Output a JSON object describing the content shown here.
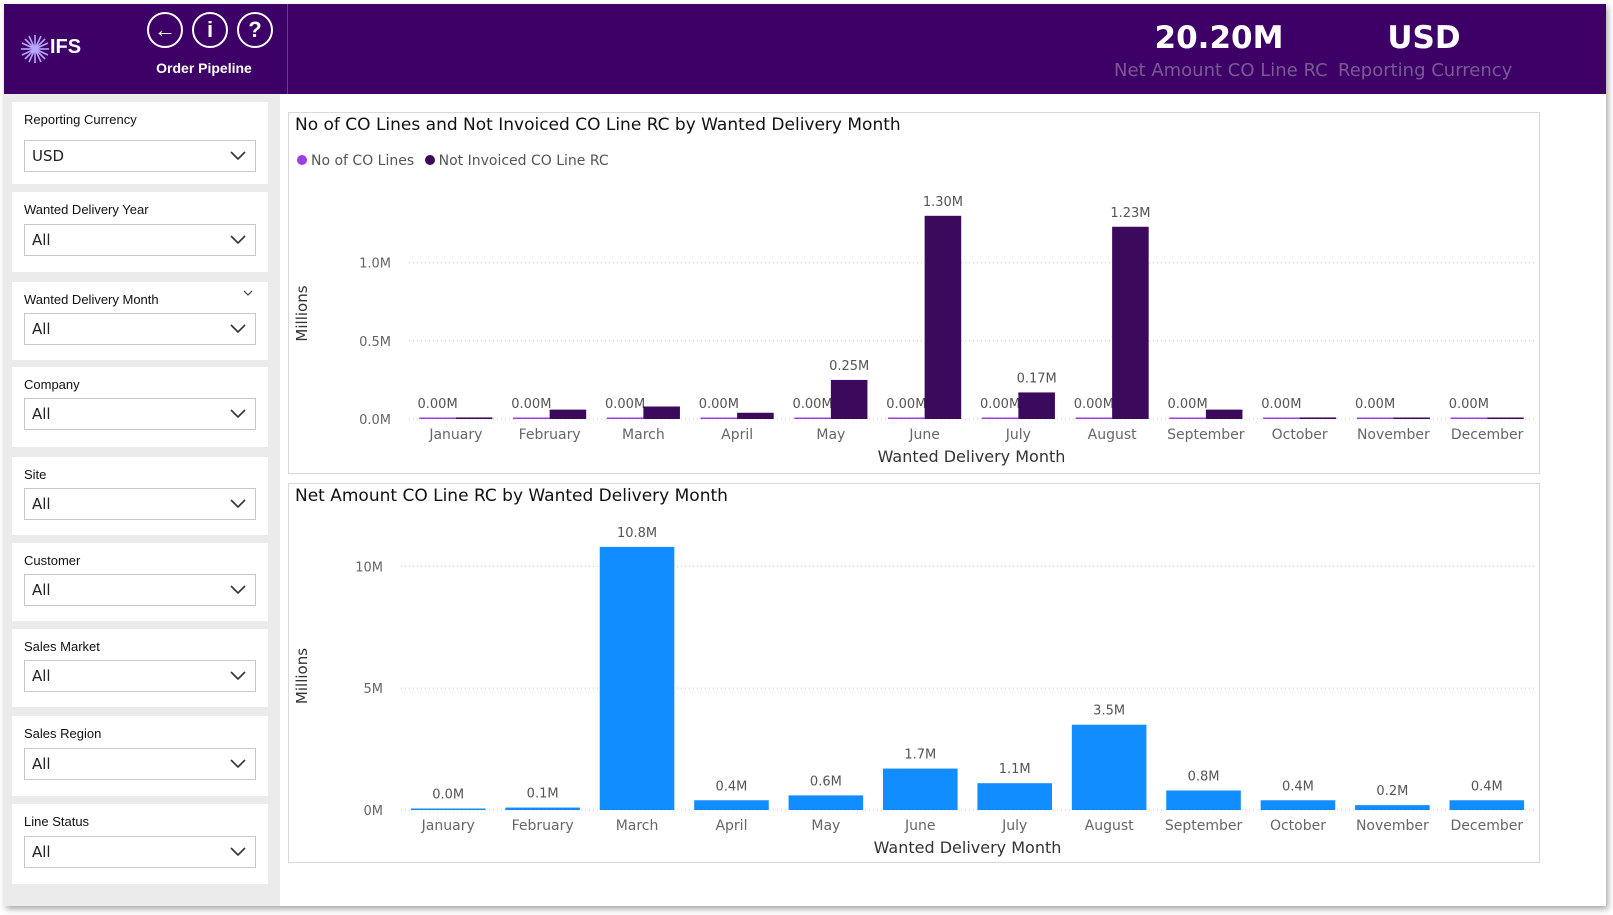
{
  "app": {
    "logo_text": "IFS",
    "title": "Order Pipeline",
    "nav": {
      "back": "←",
      "info": "i",
      "help": "?"
    }
  },
  "kpis": [
    {
      "value": "20.20M",
      "label": "Net Amount CO Line RC"
    },
    {
      "value": "USD",
      "label": "Reporting Currency"
    }
  ],
  "filters": [
    {
      "label": "Reporting Currency",
      "value": "USD"
    },
    {
      "label": "Wanted Delivery Year",
      "value": "All"
    },
    {
      "label": "Wanted Delivery Month",
      "value": "All"
    },
    {
      "label": "Company",
      "value": "All"
    },
    {
      "label": "Site",
      "value": "All"
    },
    {
      "label": "Customer",
      "value": "All"
    },
    {
      "label": "Sales Market",
      "value": "All"
    },
    {
      "label": "Sales Region",
      "value": "All"
    },
    {
      "label": "Line Status",
      "value": "All"
    }
  ],
  "colors": {
    "header_bg": "#3d0066",
    "series_co_lines": "#9b3fe0",
    "series_not_invoiced": "#3b0a5c",
    "series_net_amount": "#118dff"
  },
  "chart_data": [
    {
      "type": "bar",
      "title": "No of CO Lines and Not Invoiced CO Line RC by Wanted Delivery Month",
      "xlabel": "Wanted Delivery Month",
      "ylabel": "Millions",
      "categories": [
        "January",
        "February",
        "March",
        "April",
        "May",
        "June",
        "July",
        "August",
        "September",
        "October",
        "November",
        "December"
      ],
      "series": [
        {
          "name": "No of CO Lines",
          "values": [
            0,
            0,
            0,
            0,
            0,
            0,
            0,
            0,
            0,
            0,
            0,
            0
          ],
          "labels": [
            "0.00M",
            "0.00M",
            "0.00M",
            "0.00M",
            "0.00M",
            "0.00M",
            "0.00M",
            "0.00M",
            "0.00M",
            "0.00M",
            "0.00M",
            "0.00M"
          ]
        },
        {
          "name": "Not Invoiced CO Line RC",
          "values": [
            0.01,
            0.06,
            0.08,
            0.04,
            0.25,
            1.3,
            0.17,
            1.23,
            0.06,
            0.01,
            0.005,
            0.005
          ],
          "labels": [
            "",
            "",
            "",
            "",
            "0.25M",
            "1.30M",
            "0.17M",
            "1.23M",
            "",
            "",
            "",
            ""
          ]
        }
      ],
      "yticks": [
        0,
        0.5,
        1.0
      ],
      "ytick_labels": [
        "0.0M",
        "0.5M",
        "1.0M"
      ],
      "ylim": [
        0,
        1.35
      ],
      "grid": true,
      "legend": "top-left"
    },
    {
      "type": "bar",
      "title": "Net Amount CO Line RC by Wanted Delivery Month",
      "xlabel": "Wanted Delivery Month",
      "ylabel": "Millions",
      "categories": [
        "January",
        "February",
        "March",
        "April",
        "May",
        "June",
        "July",
        "August",
        "September",
        "October",
        "November",
        "December"
      ],
      "series": [
        {
          "name": "Net Amount CO Line RC",
          "values": [
            0.0,
            0.1,
            10.8,
            0.4,
            0.6,
            1.7,
            1.1,
            3.5,
            0.8,
            0.4,
            0.2,
            0.4
          ],
          "labels": [
            "0.0M",
            "0.1M",
            "10.8M",
            "0.4M",
            "0.6M",
            "1.7M",
            "1.1M",
            "3.5M",
            "0.8M",
            "0.4M",
            "0.2M",
            "0.4M"
          ]
        }
      ],
      "yticks": [
        0,
        5,
        10
      ],
      "ytick_labels": [
        "0M",
        "5M",
        "10M"
      ],
      "ylim": [
        0,
        11.0
      ],
      "grid": true,
      "legend": "none"
    }
  ]
}
